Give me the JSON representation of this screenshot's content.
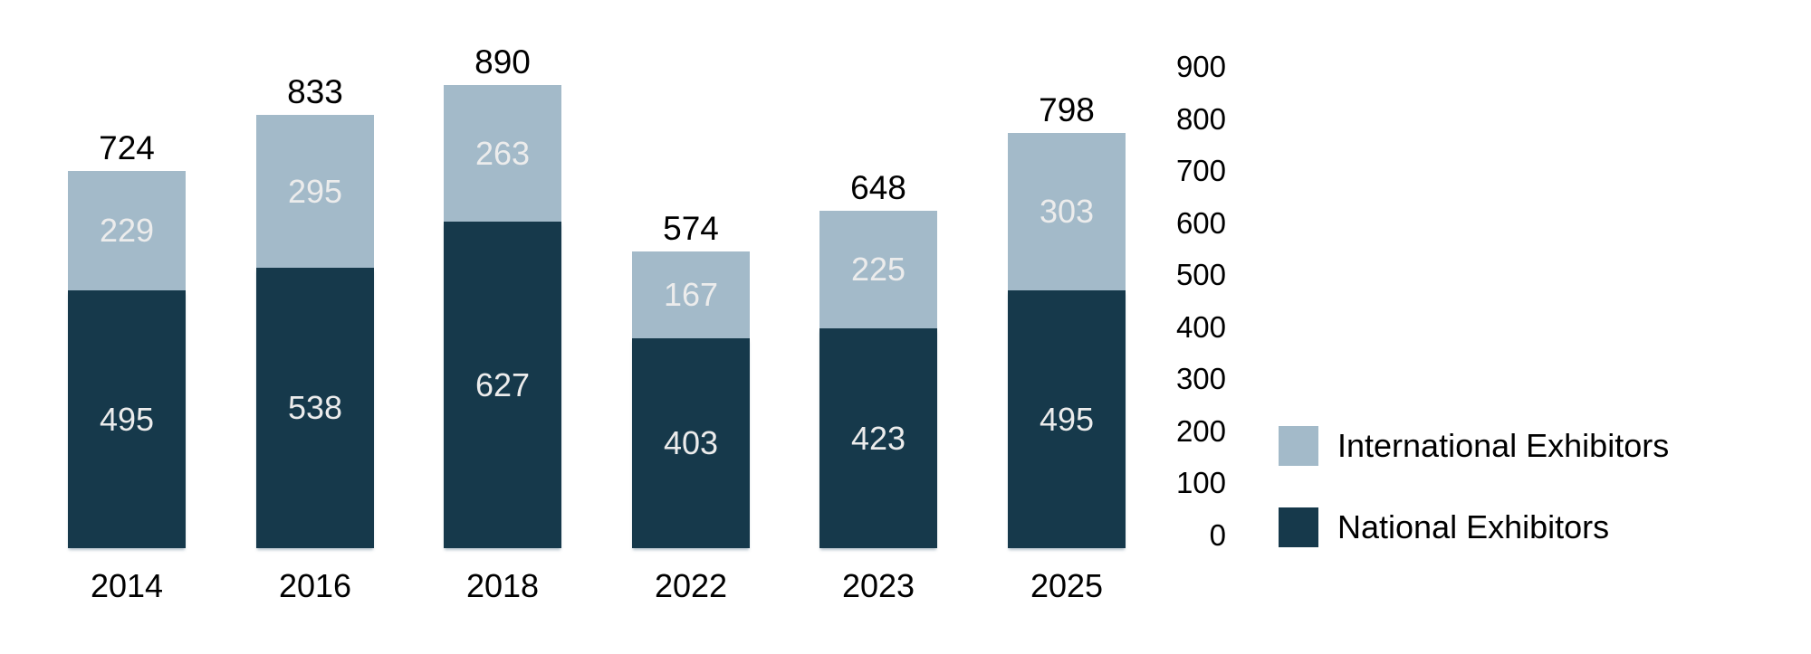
{
  "chart_data": {
    "type": "bar",
    "stacked": true,
    "title": "",
    "xlabel": "",
    "ylabel": "",
    "categories": [
      "2014",
      "2016",
      "2018",
      "2022",
      "2023",
      "2025"
    ],
    "series": [
      {
        "name": "National Exhibitors",
        "color": "#16394b",
        "values": [
          495,
          538,
          627,
          403,
          423,
          495
        ]
      },
      {
        "name": "International Exhibitors",
        "color": "#a3bac9",
        "values": [
          229,
          295,
          263,
          167,
          225,
          303
        ]
      }
    ],
    "total_labels": [
      "724",
      "833",
      "890",
      "574",
      "648",
      "798"
    ],
    "segment_label_color": "#ececec",
    "total_label_color": "#000000",
    "axis": {
      "side": "right",
      "min": 0,
      "max": 900,
      "ticks": [
        "900",
        "800",
        "700",
        "600",
        "500",
        "400",
        "300",
        "200",
        "100",
        "0"
      ],
      "tick_values": [
        900,
        800,
        700,
        600,
        500,
        400,
        300,
        200,
        100,
        0
      ]
    },
    "legend": {
      "position": "right",
      "items": [
        {
          "label": "International Exhibitors",
          "color": "#a3bac9"
        },
        {
          "label": "National Exhibitors",
          "color": "#16394b"
        }
      ]
    },
    "gridlines": false,
    "background": "#ffffff"
  }
}
